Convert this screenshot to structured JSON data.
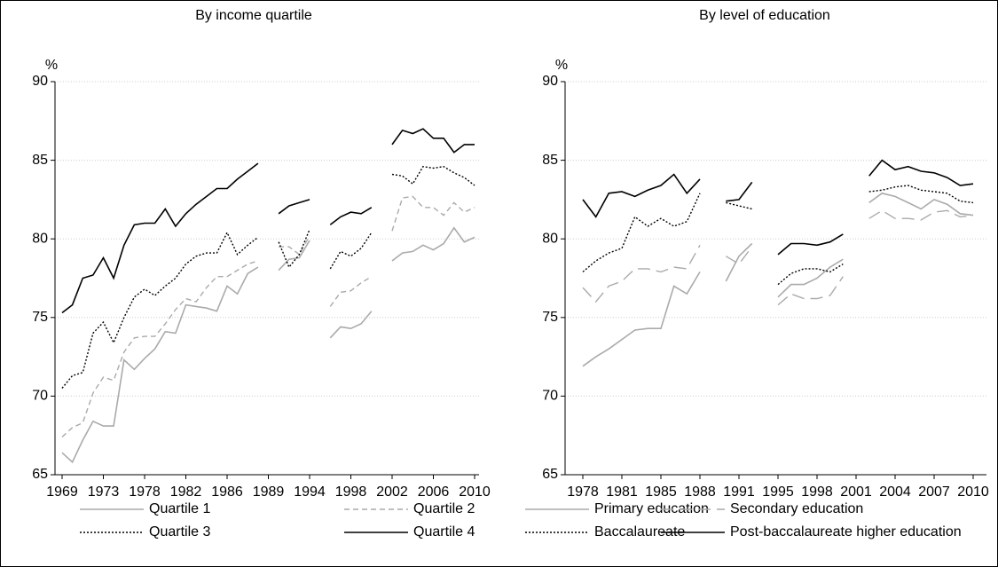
{
  "chart_data": [
    {
      "type": "line",
      "title": "By income quartile",
      "y_label": "%",
      "categories": [
        "1969",
        null,
        null,
        null,
        "1973",
        null,
        null,
        null,
        "1978",
        null,
        null,
        null,
        "1982",
        null,
        null,
        null,
        "1986",
        null,
        null,
        null,
        "1989",
        null,
        null,
        null,
        "1994",
        null,
        null,
        null,
        "1998",
        null,
        null,
        null,
        "2002",
        null,
        null,
        null,
        "2006",
        null,
        null,
        null,
        "2010"
      ],
      "series": [
        {
          "name": "Quartile 1",
          "color": "#aaaaaa",
          "dash": "solid",
          "values": [
            66.4,
            65.8,
            67.2,
            68.4,
            68.1,
            68.1,
            72.3,
            71.7,
            72.4,
            73.0,
            74.1,
            74.0,
            75.8,
            75.7,
            75.6,
            75.4,
            77.0,
            76.5,
            77.8,
            78.2,
            null,
            78.0,
            78.7,
            78.8,
            79.9,
            null,
            73.7,
            74.4,
            74.3,
            74.6,
            75.4,
            null,
            78.6,
            79.1,
            79.2,
            79.6,
            79.3,
            79.7,
            80.7,
            79.8,
            80.1
          ]
        },
        {
          "name": "Quartile 2",
          "color": "#aaaaaa",
          "dash": "dashed",
          "values": [
            67.4,
            68.0,
            68.3,
            70.2,
            71.2,
            71.0,
            72.8,
            73.7,
            73.8,
            73.8,
            74.6,
            75.5,
            76.2,
            76.0,
            76.9,
            77.6,
            77.6,
            78.0,
            78.4,
            78.6,
            null,
            79.5,
            79.5,
            79.0,
            80.2,
            null,
            75.7,
            76.6,
            76.7,
            77.2,
            77.6,
            null,
            80.5,
            82.6,
            82.7,
            82.0,
            82.0,
            81.5,
            82.3,
            81.7,
            82.0
          ]
        },
        {
          "name": "Quartile 3",
          "color": "#000000",
          "dash": "dotted",
          "values": [
            70.5,
            71.3,
            71.5,
            74.0,
            74.7,
            73.4,
            75.0,
            76.3,
            76.8,
            76.4,
            77.0,
            77.5,
            78.4,
            78.9,
            79.1,
            79.1,
            80.4,
            79.0,
            79.6,
            80.1,
            null,
            79.8,
            78.2,
            79.0,
            80.6,
            null,
            78.1,
            79.2,
            78.9,
            79.4,
            80.4,
            null,
            84.1,
            84.0,
            83.5,
            84.6,
            84.5,
            84.6,
            84.2,
            83.9,
            83.4
          ]
        },
        {
          "name": "Quartile 4",
          "color": "#000000",
          "dash": "solid",
          "values": [
            75.3,
            75.8,
            77.5,
            77.7,
            78.8,
            77.5,
            79.6,
            80.9,
            81.0,
            81.0,
            81.9,
            80.8,
            81.6,
            82.2,
            82.7,
            83.2,
            83.2,
            83.8,
            84.3,
            84.8,
            null,
            81.6,
            82.1,
            82.3,
            82.5,
            null,
            80.9,
            81.4,
            81.7,
            81.6,
            82.0,
            null,
            86.0,
            86.9,
            86.7,
            87.0,
            86.4,
            86.4,
            85.5,
            86.0,
            86.0
          ]
        }
      ],
      "ylim": [
        65,
        90
      ],
      "yticks": [
        65,
        70,
        75,
        80,
        85,
        90
      ],
      "grid": true,
      "legend": "bottom"
    },
    {
      "type": "line",
      "title": "By level of education",
      "y_label": "%",
      "categories": [
        "1978",
        null,
        null,
        "1981",
        null,
        null,
        "1985",
        null,
        null,
        "1988",
        null,
        null,
        "1991",
        null,
        null,
        "1995",
        null,
        null,
        "1998",
        null,
        null,
        "2001",
        null,
        null,
        "2004",
        null,
        null,
        "2007",
        null,
        null,
        "2010"
      ],
      "series": [
        {
          "name": "Primary education",
          "color": "#aaaaaa",
          "dash": "solid",
          "values": [
            71.9,
            72.5,
            73.0,
            73.6,
            74.2,
            74.3,
            74.3,
            77.0,
            76.5,
            77.9,
            null,
            77.3,
            78.9,
            79.7,
            null,
            76.3,
            77.1,
            77.1,
            77.5,
            78.2,
            78.7,
            null,
            82.3,
            82.9,
            82.7,
            82.3,
            81.9,
            82.5,
            82.2,
            81.6,
            81.5
          ]
        },
        {
          "name": "Secondary education",
          "color": "#aaaaaa",
          "dash": "longdash",
          "values": [
            76.9,
            76.0,
            77.0,
            77.3,
            78.1,
            78.1,
            77.9,
            78.2,
            78.1,
            79.6,
            null,
            78.9,
            78.4,
            79.5,
            null,
            75.8,
            76.5,
            76.2,
            76.2,
            76.4,
            77.6,
            null,
            81.3,
            81.8,
            81.3,
            81.3,
            81.2,
            81.7,
            81.8,
            81.4,
            81.5
          ]
        },
        {
          "name": "Baccalaureate",
          "color": "#000000",
          "dash": "dotted",
          "values": [
            77.9,
            78.6,
            79.1,
            79.4,
            81.4,
            80.8,
            81.3,
            80.8,
            81.1,
            82.9,
            null,
            82.3,
            82.1,
            81.9,
            null,
            77.1,
            77.8,
            78.1,
            78.1,
            77.9,
            78.4,
            null,
            83.0,
            83.1,
            83.3,
            83.4,
            83.1,
            83.0,
            82.9,
            82.4,
            82.3
          ]
        },
        {
          "name": "Post-baccalaureate higher education",
          "color": "#000000",
          "dash": "solid",
          "values": [
            82.5,
            81.4,
            82.9,
            83.0,
            82.7,
            83.1,
            83.4,
            84.1,
            82.9,
            83.8,
            null,
            82.4,
            82.5,
            83.6,
            null,
            79.0,
            79.7,
            79.7,
            79.6,
            79.8,
            80.3,
            null,
            84.0,
            85.0,
            84.4,
            84.6,
            84.3,
            84.2,
            83.9,
            83.4,
            83.5
          ]
        }
      ],
      "ylim": [
        65,
        90
      ],
      "yticks": [
        65,
        70,
        75,
        80,
        85,
        90
      ],
      "grid": true,
      "legend": "bottom"
    }
  ]
}
